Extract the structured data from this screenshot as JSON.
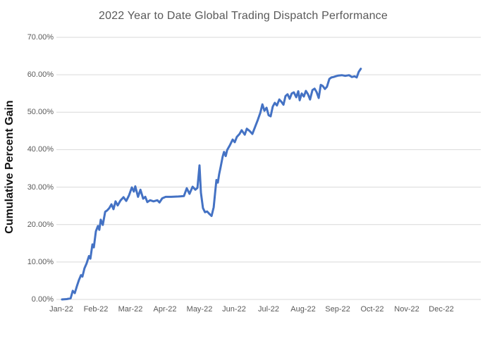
{
  "title": "2022 Year to Date Global Trading Dispatch Performance",
  "colors": {
    "line": "#4472C4",
    "gridline": "#D9D9D9",
    "tick_text": "#595959",
    "axis_title_text": "#111111",
    "background": "#FFFFFF"
  },
  "chart_data": {
    "type": "line",
    "title": "2022 Year to Date Global Trading Dispatch Performance",
    "xlabel": "",
    "ylabel": "Cumulative Percent Gain",
    "legend": "none",
    "grid": "horizontal-major",
    "ylim": [
      0,
      70
    ],
    "y_major_unit": 10,
    "y_tick_labels": [
      "0.00%",
      "10.00%",
      "20.00%",
      "30.00%",
      "40.00%",
      "50.00%",
      "60.00%",
      "70.00%"
    ],
    "x_tick_labels": [
      "Jan-22",
      "Feb-22",
      "Mar-22",
      "Apr-22",
      "May-22",
      "Jun-22",
      "Jul-22",
      "Aug-22",
      "Sep-22",
      "Oct-22",
      "Nov-22",
      "Dec-22"
    ],
    "series": [
      {
        "name": "Cumulative Percent Gain",
        "x_unit": "months-since-Jan-22",
        "y_unit": "percent",
        "points": [
          [
            0.02,
            0.0
          ],
          [
            0.16,
            0.1
          ],
          [
            0.27,
            0.3
          ],
          [
            0.33,
            2.3
          ],
          [
            0.39,
            1.7
          ],
          [
            0.45,
            3.5
          ],
          [
            0.51,
            5.2
          ],
          [
            0.57,
            6.5
          ],
          [
            0.61,
            6.1
          ],
          [
            0.67,
            8.3
          ],
          [
            0.73,
            9.6
          ],
          [
            0.8,
            11.6
          ],
          [
            0.84,
            10.9
          ],
          [
            0.9,
            14.7
          ],
          [
            0.94,
            13.9
          ],
          [
            1.0,
            18.2
          ],
          [
            1.06,
            19.6
          ],
          [
            1.1,
            18.6
          ],
          [
            1.14,
            21.3
          ],
          [
            1.2,
            19.9
          ],
          [
            1.27,
            23.4
          ],
          [
            1.33,
            23.8
          ],
          [
            1.39,
            24.4
          ],
          [
            1.45,
            25.4
          ],
          [
            1.51,
            24.1
          ],
          [
            1.57,
            26.2
          ],
          [
            1.63,
            25.1
          ],
          [
            1.71,
            26.4
          ],
          [
            1.8,
            27.3
          ],
          [
            1.88,
            26.3
          ],
          [
            1.96,
            27.8
          ],
          [
            2.04,
            29.9
          ],
          [
            2.1,
            28.8
          ],
          [
            2.14,
            30.2
          ],
          [
            2.22,
            27.4
          ],
          [
            2.29,
            29.3
          ],
          [
            2.37,
            26.9
          ],
          [
            2.43,
            27.4
          ],
          [
            2.49,
            26.0
          ],
          [
            2.57,
            26.5
          ],
          [
            2.67,
            26.2
          ],
          [
            2.78,
            26.5
          ],
          [
            2.84,
            25.9
          ],
          [
            2.92,
            27.0
          ],
          [
            3.02,
            27.4
          ],
          [
            3.18,
            27.4
          ],
          [
            3.39,
            27.5
          ],
          [
            3.55,
            27.6
          ],
          [
            3.63,
            29.7
          ],
          [
            3.71,
            28.2
          ],
          [
            3.8,
            30.1
          ],
          [
            3.88,
            29.3
          ],
          [
            3.94,
            29.8
          ],
          [
            4.0,
            35.8
          ],
          [
            4.04,
            28.5
          ],
          [
            4.1,
            24.4
          ],
          [
            4.16,
            23.3
          ],
          [
            4.22,
            23.5
          ],
          [
            4.29,
            22.8
          ],
          [
            4.35,
            22.3
          ],
          [
            4.41,
            24.6
          ],
          [
            4.45,
            28.4
          ],
          [
            4.49,
            31.9
          ],
          [
            4.53,
            31.2
          ],
          [
            4.57,
            33.5
          ],
          [
            4.61,
            35.3
          ],
          [
            4.67,
            38.1
          ],
          [
            4.71,
            39.4
          ],
          [
            4.76,
            38.3
          ],
          [
            4.8,
            39.9
          ],
          [
            4.88,
            41.2
          ],
          [
            4.96,
            42.7
          ],
          [
            5.02,
            42.0
          ],
          [
            5.08,
            43.4
          ],
          [
            5.16,
            44.2
          ],
          [
            5.22,
            45.2
          ],
          [
            5.31,
            44.0
          ],
          [
            5.37,
            45.6
          ],
          [
            5.45,
            45.0
          ],
          [
            5.53,
            44.2
          ],
          [
            5.61,
            46.1
          ],
          [
            5.69,
            48.0
          ],
          [
            5.76,
            49.8
          ],
          [
            5.82,
            52.1
          ],
          [
            5.88,
            50.4
          ],
          [
            5.94,
            51.2
          ],
          [
            6.0,
            49.2
          ],
          [
            6.06,
            48.9
          ],
          [
            6.12,
            51.5
          ],
          [
            6.18,
            52.5
          ],
          [
            6.24,
            51.8
          ],
          [
            6.31,
            53.4
          ],
          [
            6.37,
            52.8
          ],
          [
            6.43,
            52.0
          ],
          [
            6.49,
            54.3
          ],
          [
            6.55,
            54.8
          ],
          [
            6.61,
            53.6
          ],
          [
            6.67,
            55.0
          ],
          [
            6.73,
            55.3
          ],
          [
            6.8,
            54.0
          ],
          [
            6.86,
            55.6
          ],
          [
            6.9,
            53.2
          ],
          [
            6.96,
            55.0
          ],
          [
            7.02,
            54.2
          ],
          [
            7.08,
            55.7
          ],
          [
            7.14,
            54.8
          ],
          [
            7.2,
            53.4
          ],
          [
            7.27,
            55.9
          ],
          [
            7.33,
            56.3
          ],
          [
            7.39,
            55.4
          ],
          [
            7.45,
            53.8
          ],
          [
            7.51,
            57.3
          ],
          [
            7.57,
            57.0
          ],
          [
            7.63,
            56.2
          ],
          [
            7.69,
            56.8
          ],
          [
            7.76,
            58.9
          ],
          [
            7.82,
            59.3
          ],
          [
            7.88,
            59.4
          ],
          [
            7.94,
            59.6
          ],
          [
            8.02,
            59.8
          ],
          [
            8.12,
            59.9
          ],
          [
            8.22,
            59.7
          ],
          [
            8.33,
            59.9
          ],
          [
            8.41,
            59.4
          ],
          [
            8.49,
            59.6
          ],
          [
            8.55,
            59.3
          ],
          [
            8.61,
            60.8
          ],
          [
            8.67,
            61.6
          ]
        ]
      }
    ]
  }
}
